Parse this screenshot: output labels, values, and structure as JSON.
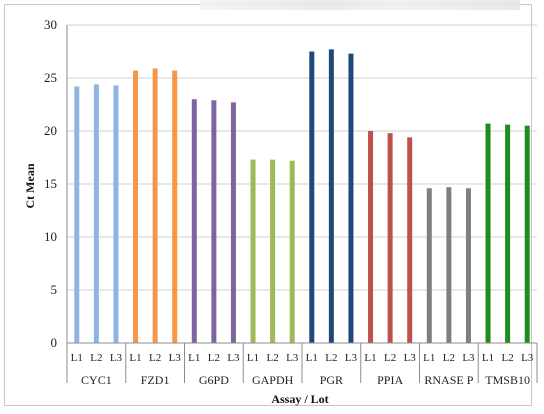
{
  "chart_data": {
    "type": "bar",
    "title": "",
    "xlabel": "Assay / Lot",
    "ylabel": "Ct Mean",
    "ylim": [
      0,
      30
    ],
    "yticks": [
      0,
      5,
      10,
      15,
      20,
      25,
      30
    ],
    "grid": true,
    "lots": [
      "L1",
      "L2",
      "L3"
    ],
    "groups": [
      {
        "name": "CYC1",
        "color": "#8fb4e3",
        "values": [
          24.2,
          24.4,
          24.3
        ]
      },
      {
        "name": "FZD1",
        "color": "#f79646",
        "values": [
          25.7,
          25.9,
          25.7
        ]
      },
      {
        "name": "G6PD",
        "color": "#8064a2",
        "values": [
          23.0,
          22.9,
          22.7
        ]
      },
      {
        "name": "GAPDH",
        "color": "#9bbb59",
        "values": [
          17.3,
          17.3,
          17.2
        ]
      },
      {
        "name": "PGR",
        "color": "#1f497d",
        "values": [
          27.5,
          27.7,
          27.3
        ]
      },
      {
        "name": "PPIA",
        "color": "#c0504d",
        "values": [
          20.0,
          19.8,
          19.4
        ]
      },
      {
        "name": "RNASE P",
        "color": "#7f7f7f",
        "values": [
          14.6,
          14.7,
          14.6
        ]
      },
      {
        "name": "TMSB10",
        "color": "#1e8b1e",
        "values": [
          20.7,
          20.6,
          20.5
        ]
      }
    ]
  }
}
